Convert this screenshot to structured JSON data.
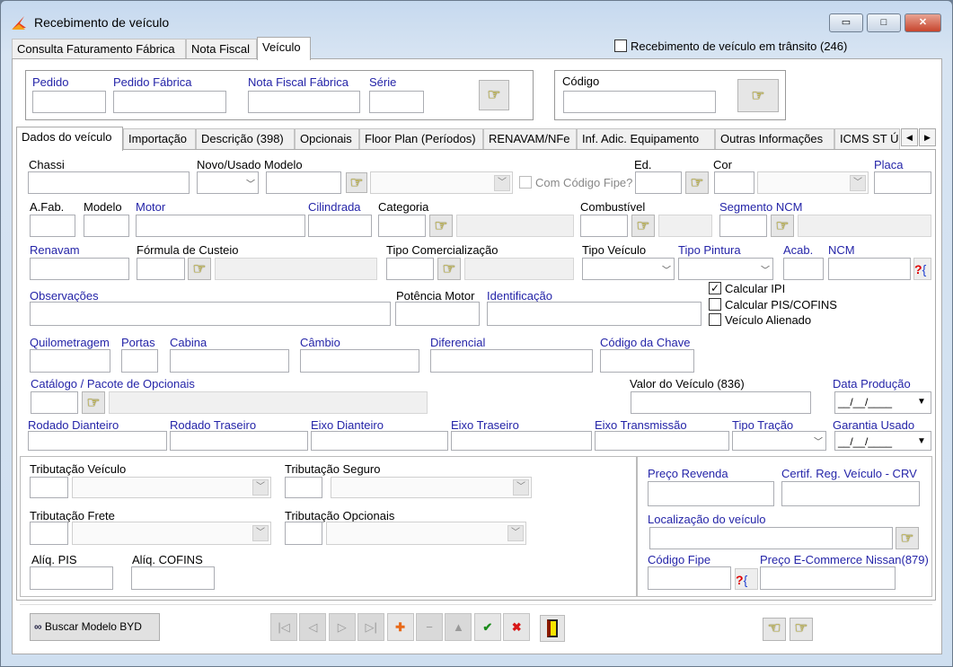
{
  "window": {
    "title": "Recebimento de veículo",
    "controls": {
      "minimize": "▭",
      "maximize": "□",
      "close": "✕"
    }
  },
  "outer_tabs": [
    {
      "label": "Consulta Faturamento Fábrica",
      "active": false
    },
    {
      "label": "Nota Fiscal",
      "active": false
    },
    {
      "label": "Veículo",
      "active": true
    }
  ],
  "transit": {
    "label": "Recebimento de veículo em trânsito (246)",
    "checked": false
  },
  "search": {
    "pedido": "Pedido",
    "pedido_fabrica": "Pedido Fábrica",
    "nota_fiscal_fabrica": "Nota Fiscal Fábrica",
    "serie": "Série",
    "codigo": "Código"
  },
  "inner_tabs": [
    {
      "label": "Dados do veículo",
      "active": true
    },
    {
      "label": "Importação"
    },
    {
      "label": "Descrição (398)"
    },
    {
      "label": "Opcionais"
    },
    {
      "label": "Floor Plan (Períodos)"
    },
    {
      "label": "RENAVAM/NFe"
    },
    {
      "label": "Inf. Adic. Equipamento"
    },
    {
      "label": "Outras Informações"
    },
    {
      "label": "ICMS ST Úl"
    }
  ],
  "form": {
    "chassi": "Chassi",
    "novo_usado": "Novo/Usado",
    "modelo": "Modelo",
    "com_codigo_fipe": "Com Código Fipe?",
    "ed": "Ed.",
    "cor": "Cor",
    "placa": "Placa",
    "a_fab": "A.Fab.",
    "modelo_ano": "Modelo",
    "motor": "Motor",
    "cilindrada": "Cilindrada",
    "categoria": "Categoria",
    "combustivel": "Combustível",
    "segmento_ncm": "Segmento NCM",
    "renavam": "Renavam",
    "formula_custeio": "Fórmula de Custeio",
    "tipo_comercializacao": "Tipo Comercialização",
    "tipo_veiculo": "Tipo Veículo",
    "tipo_pintura": "Tipo Pintura",
    "acab": "Acab.",
    "ncm": "NCM",
    "observacoes": "Observações",
    "potencia_motor": "Potência Motor",
    "identificacao": "Identificação",
    "calcular_ipi": "Calcular IPI",
    "calcular_pis_cofins": "Calcular PIS/COFINS",
    "veiculo_alienado": "Veículo Alienado",
    "quilometragem": "Quilometragem",
    "portas": "Portas",
    "cabina": "Cabina",
    "cambio": "Câmbio",
    "diferencial": "Diferencial",
    "codigo_chave": "Código da Chave",
    "catalogo": "Catálogo / Pacote de Opcionais",
    "valor_veiculo": "Valor do Veículo (836)",
    "data_producao": "Data Produção",
    "data_producao_value": "__/__/____",
    "rodado_dianteiro": "Rodado Dianteiro",
    "rodado_traseiro": "Rodado Traseiro",
    "eixo_dianteiro": "Eixo Dianteiro",
    "eixo_traseiro": "Eixo Traseiro",
    "eixo_transmissao": "Eixo Transmissão",
    "tipo_tracao": "Tipo Tração",
    "garantia_usado": "Garantia Usado",
    "garantia_usado_value": "__/__/____",
    "checks": {
      "calcular_ipi": true,
      "calcular_pis_cofins": false,
      "veiculo_alienado": false,
      "com_codigo_fipe": false
    }
  },
  "tax": {
    "tributacao_veiculo": "Tributação Veículo",
    "tributacao_seguro": "Tributação Seguro",
    "tributacao_frete": "Tributação Frete",
    "tributacao_opcionais": "Tributação Opcionais",
    "aliq_pis": "Alíq. PIS",
    "aliq_cofins": "Alíq. COFINS",
    "preco_revenda": "Preço Revenda",
    "certif_crv": "Certif. Reg. Veículo - CRV",
    "localizacao": "Localização do veículo",
    "codigo_fipe": "Código Fipe",
    "preco_ecommerce": "Preço E-Commerce Nissan(879)"
  },
  "toolbar": {
    "buscar_modelo": "Buscar Modelo BYD",
    "nav": [
      {
        "name": "first-record",
        "glyph": "|◁"
      },
      {
        "name": "previous-record",
        "glyph": "◁"
      },
      {
        "name": "next-record",
        "glyph": "▷"
      },
      {
        "name": "last-record",
        "glyph": "▷|"
      },
      {
        "name": "add",
        "glyph": "✚"
      },
      {
        "name": "delete",
        "glyph": "−"
      },
      {
        "name": "edit",
        "glyph": "▲"
      },
      {
        "name": "confirm",
        "glyph": "✔"
      },
      {
        "name": "cancel",
        "glyph": "✖"
      }
    ]
  },
  "colors": {
    "label_blue": "#2424a8",
    "title_bg": "#c6d9ef",
    "add": "#e86a1a",
    "confirm": "#1c8c1c",
    "cancel": "#d81818"
  }
}
